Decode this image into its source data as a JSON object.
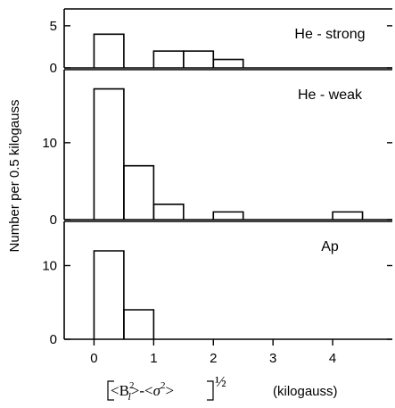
{
  "chart_data": {
    "type": "bar",
    "ylabel": "Number per 0.5 kilogauss",
    "xlabel_units": "(kilogauss)",
    "x_ticks": [
      0,
      1,
      2,
      3,
      4
    ],
    "xlim": [
      -0.5,
      5.0
    ],
    "bin_width": 0.5,
    "panels": [
      {
        "label": "He - strong",
        "y_ticks": [
          0,
          5
        ],
        "ylim": [
          0,
          7
        ],
        "bins": [
          {
            "x0": 0.0,
            "x1": 0.5,
            "value": 4
          },
          {
            "x0": 0.5,
            "x1": 1.0,
            "value": 0
          },
          {
            "x0": 1.0,
            "x1": 1.5,
            "value": 2
          },
          {
            "x0": 1.5,
            "x1": 2.0,
            "value": 2
          },
          {
            "x0": 2.0,
            "x1": 2.5,
            "value": 1
          }
        ]
      },
      {
        "label": "He - weak",
        "y_ticks": [
          0,
          10
        ],
        "ylim": [
          0,
          19.5
        ],
        "bins": [
          {
            "x0": 0.0,
            "x1": 0.5,
            "value": 17
          },
          {
            "x0": 0.5,
            "x1": 1.0,
            "value": 7
          },
          {
            "x0": 1.0,
            "x1": 1.5,
            "value": 2
          },
          {
            "x0": 2.0,
            "x1": 2.5,
            "value": 1
          },
          {
            "x0": 4.0,
            "x1": 4.5,
            "value": 1
          }
        ]
      },
      {
        "label": "Ap",
        "y_ticks": [
          0,
          10
        ],
        "ylim": [
          0,
          16
        ],
        "bins": [
          {
            "x0": 0.0,
            "x1": 0.5,
            "value": 12
          },
          {
            "x0": 0.5,
            "x1": 1.0,
            "value": 4
          }
        ]
      }
    ]
  }
}
